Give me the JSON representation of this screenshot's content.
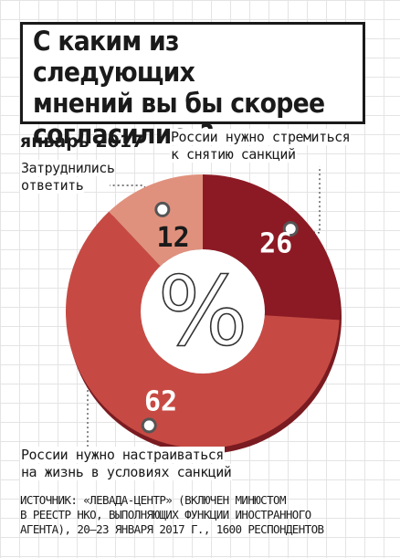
{
  "title_lines": [
    "С каким из следующих",
    "мнений вы бы скорее",
    "согласились?"
  ],
  "date": "январь 2017",
  "source_lines": [
    "ИСТОЧНИК: «ЛЕВАДА-ЦЕНТР» (ВКЛЮЧЕН МИНЮСТОМ",
    "В РЕЕСТР НКО, ВЫПОЛНЯЮЩИХ ФУНКЦИИ ИНОСТРАННОГО",
    "АГЕНТА), 20–23 ЯНВАРЯ 2017 Г., 1600 РЕСПОНДЕНТОВ"
  ],
  "center_symbol": "%",
  "chart_data": {
    "type": "pie",
    "donut": true,
    "title": "С каким из следующих мнений вы бы скорее согласились?",
    "subtitle": "январь 2017",
    "unit": "%",
    "slices": [
      {
        "label_lines": [
          "России нужно стремиться",
          "к снятию санкций"
        ],
        "value": 26,
        "color": "#8c1a24"
      },
      {
        "label_lines": [
          "России нужно настраиваться",
          "на жизнь в условиях санкций"
        ],
        "value": 62,
        "color": "#c64a43"
      },
      {
        "label_lines": [
          "Затруднились",
          "ответить"
        ],
        "value": 12,
        "color": "#e0917d"
      }
    ]
  }
}
